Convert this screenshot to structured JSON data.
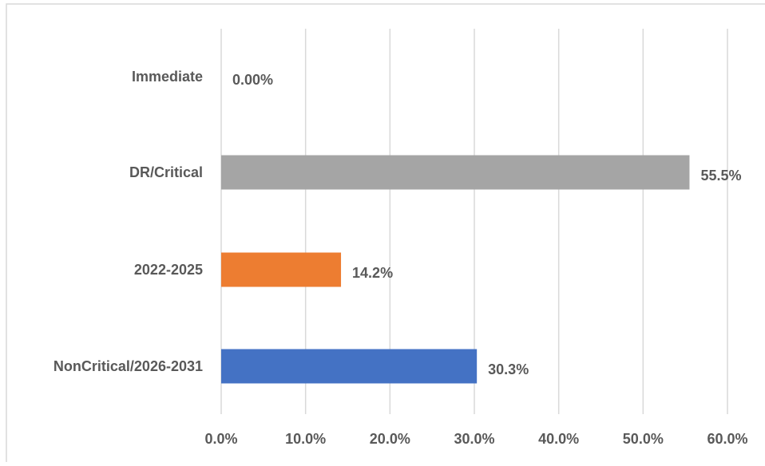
{
  "chart_data": {
    "type": "bar",
    "orientation": "horizontal",
    "categories": [
      "Immediate",
      "DR/Critical",
      "2022-2025",
      "NonCritical/2026-2031"
    ],
    "values": [
      0.0,
      55.5,
      14.2,
      30.3
    ],
    "data_labels": [
      "0.00%",
      "55.5%",
      "14.2%",
      "30.3%"
    ],
    "colors": [
      "#a5a5a5",
      "#a5a5a5",
      "#ed7d31",
      "#4472c4"
    ],
    "xlim": [
      0,
      60
    ],
    "x_ticks": [
      0,
      10,
      20,
      30,
      40,
      50,
      60
    ],
    "x_tick_labels": [
      "0.0%",
      "10.0%",
      "20.0%",
      "30.0%",
      "40.0%",
      "50.0%",
      "60.0%"
    ],
    "grid": "vertical",
    "legend": "none"
  }
}
